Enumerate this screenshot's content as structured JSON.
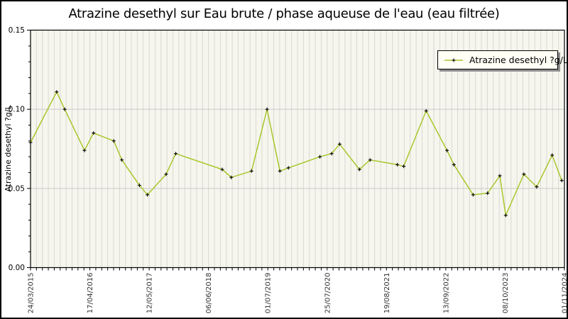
{
  "title": "Atrazine desethyl sur Eau brute / phase aqueuse de l'eau (eau filtrée)",
  "legend": {
    "label": "Atrazine desethyl ?g/L"
  },
  "axes": {
    "y": {
      "title": "Atrazine desethyl ?g/L",
      "tick_labels": [
        "0.00",
        "0.05",
        "0.10",
        "0.15"
      ],
      "range": [
        0,
        0.15
      ],
      "major_tick_step": 0.05,
      "minor_tick_step": 0.01
    },
    "x": {
      "tick_labels": [
        "24/03/2015",
        "17/04/2016",
        "12/05/2017",
        "06/06/2018",
        "01/07/2019",
        "25/07/2020",
        "19/08/2021",
        "13/09/2022",
        "08/10/2023",
        "01/11/2024"
      ],
      "minor_ticks_between_labels": 10
    }
  },
  "colors": {
    "line": "#a8c72c",
    "marker": "#000000",
    "plot_bg": "#f6f6ee",
    "stripe": "#d9d9d0",
    "grid": "#c8c8c8",
    "frame": "#000000",
    "tick_text": "#333333",
    "legend_bg": "#fffff5",
    "legend_shadow": "#8e8e8e"
  },
  "chart_data": {
    "type": "line",
    "title": "Atrazine desethyl sur Eau brute / phase aqueuse de l'eau (eau filtrée)",
    "xlabel": "",
    "ylabel": "Atrazine desethyl ?g/L",
    "ylim": [
      0,
      0.15
    ],
    "grid": "horizontal lines at 0.05 and 0.10; dense vertical minor-tick stripes",
    "legend_position": "top-right",
    "x_tick_labels": [
      "24/03/2015",
      "17/04/2016",
      "12/05/2017",
      "06/06/2018",
      "01/07/2019",
      "25/07/2020",
      "19/08/2021",
      "13/09/2022",
      "08/10/2023",
      "01/11/2024"
    ],
    "x_encoding": "x = fraction of axis width between first tick 24/03/2015 (0.0) and last tick 01/11/2024 (1.0); y = concentration in ?g/L",
    "series": [
      {
        "name": "Atrazine desethyl ?g/L",
        "marker": "black plus",
        "points": [
          {
            "x": 0.0,
            "y": 0.079
          },
          {
            "x": 0.049,
            "y": 0.111
          },
          {
            "x": 0.064,
            "y": 0.1
          },
          {
            "x": 0.101,
            "y": 0.074
          },
          {
            "x": 0.118,
            "y": 0.085
          },
          {
            "x": 0.156,
            "y": 0.08
          },
          {
            "x": 0.171,
            "y": 0.068
          },
          {
            "x": 0.204,
            "y": 0.052
          },
          {
            "x": 0.219,
            "y": 0.046
          },
          {
            "x": 0.254,
            "y": 0.059
          },
          {
            "x": 0.272,
            "y": 0.072
          },
          {
            "x": 0.359,
            "y": 0.062
          },
          {
            "x": 0.376,
            "y": 0.057
          },
          {
            "x": 0.414,
            "y": 0.061
          },
          {
            "x": 0.443,
            "y": 0.1
          },
          {
            "x": 0.467,
            "y": 0.061
          },
          {
            "x": 0.483,
            "y": 0.063
          },
          {
            "x": 0.542,
            "y": 0.07
          },
          {
            "x": 0.564,
            "y": 0.072
          },
          {
            "x": 0.579,
            "y": 0.078
          },
          {
            "x": 0.616,
            "y": 0.062
          },
          {
            "x": 0.636,
            "y": 0.068
          },
          {
            "x": 0.687,
            "y": 0.065
          },
          {
            "x": 0.699,
            "y": 0.064
          },
          {
            "x": 0.741,
            "y": 0.099
          },
          {
            "x": 0.78,
            "y": 0.074
          },
          {
            "x": 0.793,
            "y": 0.065
          },
          {
            "x": 0.829,
            "y": 0.046
          },
          {
            "x": 0.856,
            "y": 0.047
          },
          {
            "x": 0.879,
            "y": 0.058
          },
          {
            "x": 0.89,
            "y": 0.033
          },
          {
            "x": 0.924,
            "y": 0.059
          },
          {
            "x": 0.948,
            "y": 0.051
          },
          {
            "x": 0.977,
            "y": 0.071
          },
          {
            "x": 0.995,
            "y": 0.055
          }
        ]
      }
    ]
  }
}
